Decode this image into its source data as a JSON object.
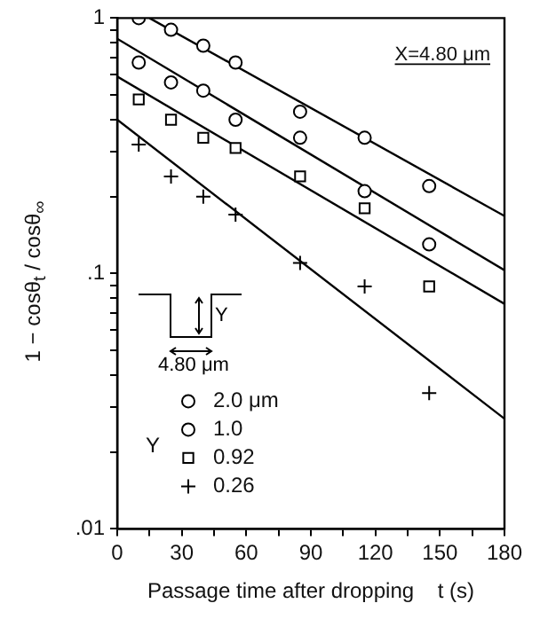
{
  "chart_data": {
    "type": "scatter",
    "xlabel": "Passage time after dropping    t (s)",
    "ylabel": "1 − cosθ$_{t}$ / cosθ$_{∞}$",
    "legend_title": "Y",
    "annotations": [
      "X=4.80 μm",
      "Y",
      "4.80 μm"
    ],
    "log": "y",
    "grid": false,
    "legend": "bottom left",
    "xlim": [
      0,
      180
    ],
    "ylim": [
      0.01,
      1
    ],
    "xticks": [
      0,
      {
        "value": 15,
        "label": null
      },
      30,
      {
        "value": 45,
        "label": null
      },
      60,
      {
        "value": 75,
        "label": null
      },
      90,
      {
        "value": 105,
        "label": null
      },
      120,
      {
        "value": 135,
        "label": null
      },
      150,
      {
        "value": 165,
        "label": null
      },
      180
    ],
    "yticks": [
      {
        "value": 0.01,
        "label": ".01"
      },
      {
        "value": 0.02,
        "label": null
      },
      {
        "value": 0.03,
        "label": null
      },
      {
        "value": 0.04,
        "label": null
      },
      {
        "value": 0.05,
        "label": null
      },
      {
        "value": 0.06,
        "label": null
      },
      {
        "value": 0.07,
        "label": null
      },
      {
        "value": 0.08,
        "label": null
      },
      {
        "value": 0.09,
        "label": null
      },
      {
        "value": 0.1,
        "label": ".1"
      },
      {
        "value": 0.2,
        "label": null
      },
      {
        "value": 0.3,
        "label": null
      },
      {
        "value": 0.4,
        "label": null
      },
      {
        "value": 0.5,
        "label": null
      },
      {
        "value": 0.6,
        "label": null
      },
      {
        "value": 0.7,
        "label": null
      },
      {
        "value": 0.8,
        "label": null
      },
      {
        "value": 0.9,
        "label": null
      },
      {
        "value": 1,
        "label": "1"
      }
    ],
    "x": [
      10,
      25,
      40,
      55,
      85,
      115,
      145
    ],
    "series": [
      {
        "name": "2.0 μm",
        "color": "#000000",
        "marker": "circle",
        "values": [
          1.0,
          0.9,
          0.78,
          0.67,
          0.43,
          0.34,
          0.22
        ]
      },
      {
        "name": "1.0",
        "color": "#000000",
        "marker": "circle",
        "values": [
          0.67,
          0.56,
          0.52,
          0.4,
          0.34,
          0.21,
          0.13
        ]
      },
      {
        "name": "0.92",
        "color": "#000000",
        "marker": "square",
        "values": [
          0.48,
          0.4,
          0.34,
          0.31,
          0.24,
          0.18,
          0.089
        ]
      },
      {
        "name": "0.26",
        "color": "#000000",
        "marker": "cross",
        "values": [
          0.32,
          0.24,
          0.2,
          0.17,
          0.11,
          0.089,
          0.034
        ]
      },
      {
        "type": "line",
        "color": "#000000",
        "marker": "none",
        "x": [
          15,
          180
        ],
        "values": [
          1.0,
          0.168
        ]
      },
      {
        "type": "line",
        "color": "#000000",
        "marker": "none",
        "x": [
          0,
          180
        ],
        "values": [
          0.83,
          0.103
        ]
      },
      {
        "type": "line",
        "color": "#000000",
        "marker": "none",
        "x": [
          0,
          180
        ],
        "values": [
          0.59,
          0.076
        ]
      },
      {
        "type": "line",
        "color": "#000000",
        "marker": "none",
        "x": [
          0,
          180
        ],
        "values": [
          0.4,
          0.027
        ]
      }
    ]
  }
}
